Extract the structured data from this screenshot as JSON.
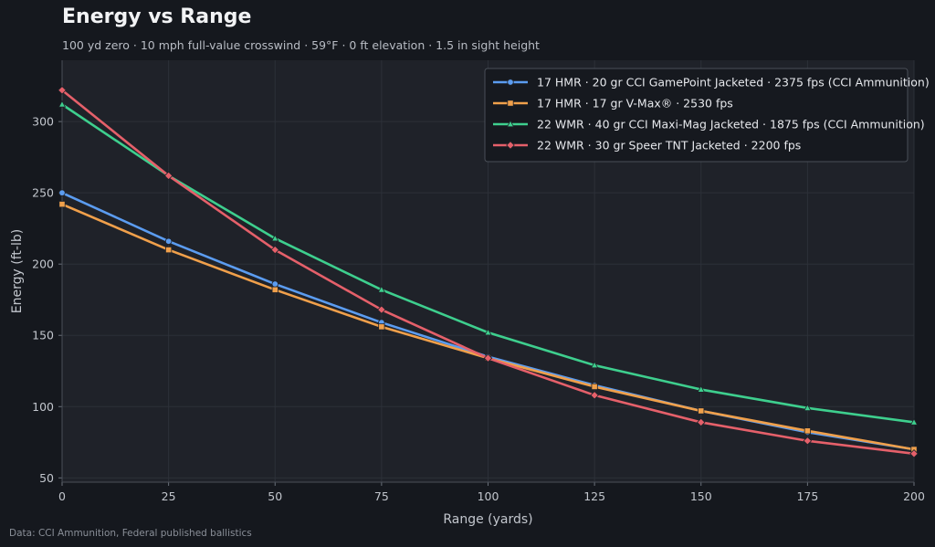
{
  "title": "Energy vs Range",
  "subtitle": "100 yd zero  ·  10 mph full-value crosswind  ·  59°F  ·  0 ft elevation  ·  1.5 in sight height",
  "source": "Data: CCI Ammunition, Federal published ballistics",
  "chart_data": {
    "type": "line",
    "xlabel": "Range (yards)",
    "ylabel": "Energy (ft-lb)",
    "xlim": [
      0,
      200
    ],
    "ylim": [
      47,
      343
    ],
    "xticks": [
      0,
      25,
      50,
      75,
      100,
      125,
      150,
      175,
      200
    ],
    "yticks": [
      50,
      100,
      150,
      200,
      250,
      300
    ],
    "grid": true,
    "legend_position": "top-right",
    "series": [
      {
        "name": "17 HMR · 20 gr CCI GamePoint Jacketed · 2375 fps (CCI Ammunition)",
        "color": "#5b9cf0",
        "marker": "circle",
        "x": [
          0,
          25,
          50,
          75,
          100,
          125,
          150,
          175,
          200
        ],
        "y": [
          250,
          216,
          186,
          159,
          135,
          115,
          97,
          82,
          70
        ]
      },
      {
        "name": "17 HMR · 17 gr V-Max® · 2530 fps",
        "color": "#f0a04b",
        "marker": "square",
        "x": [
          0,
          25,
          50,
          75,
          100,
          125,
          150,
          175,
          200
        ],
        "y": [
          242,
          210,
          182,
          156,
          134,
          114,
          97,
          83,
          70
        ]
      },
      {
        "name": "22 WMR · 40 gr CCI Maxi-Mag Jacketed · 1875 fps (CCI Ammunition)",
        "color": "#3ecf8e",
        "marker": "triangle",
        "x": [
          0,
          25,
          50,
          75,
          100,
          125,
          150,
          175,
          200
        ],
        "y": [
          312,
          262,
          218,
          182,
          152,
          129,
          112,
          99,
          89
        ]
      },
      {
        "name": "22 WMR · 30 gr Speer TNT Jacketed · 2200 fps",
        "color": "#e5606a",
        "marker": "diamond",
        "x": [
          0,
          25,
          50,
          75,
          100,
          125,
          150,
          175,
          200
        ],
        "y": [
          322,
          262,
          210,
          168,
          134,
          108,
          89,
          76,
          67
        ]
      }
    ]
  }
}
